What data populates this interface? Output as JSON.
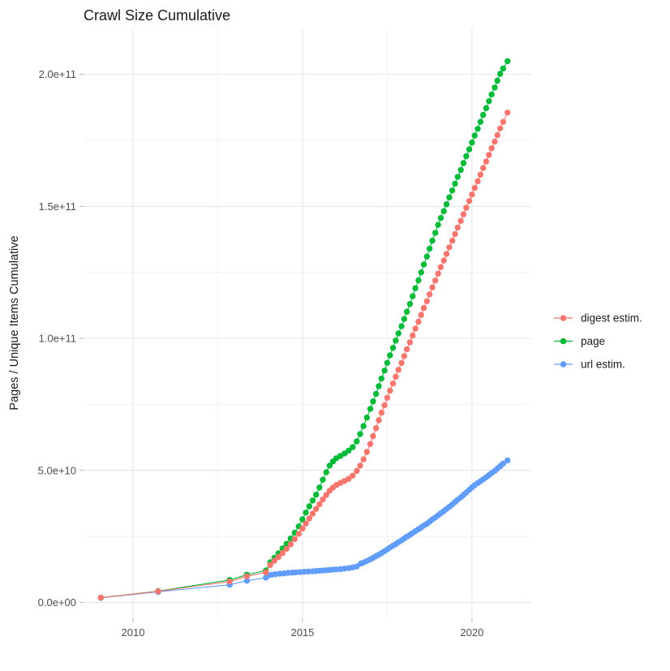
{
  "title": "Crawl Size Cumulative",
  "y_axis": {
    "label": "Pages / Unique Items Cumulative",
    "ticks": [
      {
        "label": "0.0e+00",
        "value": 0
      },
      {
        "label": "5.0e+10",
        "value": 50
      },
      {
        "label": "1.0e+11",
        "value": 100
      },
      {
        "label": "1.5e+11",
        "value": 150
      },
      {
        "label": "2.0e+11",
        "value": 200
      }
    ],
    "minor_ticks": [
      25,
      75,
      125,
      175
    ]
  },
  "x_axis": {
    "ticks": [
      {
        "label": "2010",
        "value": 2010
      },
      {
        "label": "2015",
        "value": 2015
      },
      {
        "label": "2020",
        "value": 2020
      }
    ],
    "minor_ticks": [
      2012.5,
      2017.5
    ]
  },
  "chart_data": {
    "type": "scatter",
    "note": "values stored in billions of pages/items (1e9); y tick labels shown in scientific notation",
    "xlim": [
      2008.54,
      2021.75
    ],
    "ylim": [
      -6,
      217.4
    ],
    "grid": true,
    "legend_position": "right",
    "marker": "point-with-line",
    "series": [
      {
        "name": "digest estim.",
        "color": "#F8766D",
        "points": [
          [
            2009.05,
            1.8
          ],
          [
            2010.74,
            4.2
          ],
          [
            2012.85,
            7.9
          ],
          [
            2013.36,
            9.9
          ],
          [
            2013.92,
            11.4
          ],
          [
            2014.05,
            14.2
          ],
          [
            2014.17,
            15.8
          ],
          [
            2014.29,
            17.2
          ],
          [
            2014.41,
            18.7
          ],
          [
            2014.53,
            20.3
          ],
          [
            2014.65,
            22.0
          ],
          [
            2014.77,
            24.0
          ],
          [
            2014.89,
            26.0
          ],
          [
            2015.0,
            28.0
          ],
          [
            2015.1,
            29.9
          ],
          [
            2015.2,
            31.8
          ],
          [
            2015.3,
            33.6
          ],
          [
            2015.4,
            35.4
          ],
          [
            2015.5,
            37.2
          ],
          [
            2015.6,
            39.0
          ],
          [
            2015.7,
            40.7
          ],
          [
            2015.8,
            42.3
          ],
          [
            2015.9,
            43.5
          ],
          [
            2016.0,
            44.5
          ],
          [
            2016.12,
            45.3
          ],
          [
            2016.24,
            46.0
          ],
          [
            2016.36,
            46.8
          ],
          [
            2016.48,
            48.0
          ],
          [
            2016.6,
            49.8
          ],
          [
            2016.7,
            51.8
          ],
          [
            2016.8,
            54.2
          ],
          [
            2016.9,
            57.0
          ],
          [
            2017.0,
            60.0
          ],
          [
            2017.08,
            63.0
          ],
          [
            2017.17,
            66.0
          ],
          [
            2017.25,
            69.0
          ],
          [
            2017.33,
            71.9
          ],
          [
            2017.42,
            74.7
          ],
          [
            2017.5,
            77.5
          ],
          [
            2017.58,
            80.2
          ],
          [
            2017.67,
            82.9
          ],
          [
            2017.75,
            85.5
          ],
          [
            2017.83,
            88.1
          ],
          [
            2017.92,
            90.7
          ],
          [
            2018.0,
            93.3
          ],
          [
            2018.08,
            95.9
          ],
          [
            2018.17,
            98.5
          ],
          [
            2018.25,
            101.1
          ],
          [
            2018.33,
            103.7
          ],
          [
            2018.42,
            106.3
          ],
          [
            2018.5,
            108.9
          ],
          [
            2018.58,
            111.5
          ],
          [
            2018.67,
            114.1
          ],
          [
            2018.75,
            116.7
          ],
          [
            2018.83,
            119.3
          ],
          [
            2018.92,
            121.9
          ],
          [
            2019.0,
            124.5
          ],
          [
            2019.08,
            127.0
          ],
          [
            2019.17,
            129.5
          ],
          [
            2019.25,
            132.0
          ],
          [
            2019.33,
            134.5
          ],
          [
            2019.42,
            137.0
          ],
          [
            2019.5,
            139.5
          ],
          [
            2019.58,
            142.0
          ],
          [
            2019.67,
            144.5
          ],
          [
            2019.75,
            147.0
          ],
          [
            2019.83,
            149.5
          ],
          [
            2019.92,
            152.0
          ],
          [
            2020.0,
            154.5
          ],
          [
            2020.08,
            157.0
          ],
          [
            2020.17,
            159.5
          ],
          [
            2020.25,
            162.0
          ],
          [
            2020.33,
            164.5
          ],
          [
            2020.42,
            167.0
          ],
          [
            2020.5,
            169.5
          ],
          [
            2020.58,
            172.0
          ],
          [
            2020.67,
            174.5
          ],
          [
            2020.75,
            177.0
          ],
          [
            2020.83,
            179.5
          ],
          [
            2020.92,
            182.0
          ],
          [
            2021.05,
            185.5
          ]
        ]
      },
      {
        "name": "page",
        "color": "#00BA38",
        "points": [
          [
            2009.05,
            1.8
          ],
          [
            2010.74,
            4.3
          ],
          [
            2012.85,
            8.5
          ],
          [
            2013.36,
            10.5
          ],
          [
            2013.92,
            12.1
          ],
          [
            2014.05,
            15.2
          ],
          [
            2014.17,
            16.9
          ],
          [
            2014.29,
            18.6
          ],
          [
            2014.41,
            20.5
          ],
          [
            2014.53,
            22.2
          ],
          [
            2014.65,
            24.2
          ],
          [
            2014.77,
            26.4
          ],
          [
            2014.89,
            28.8
          ],
          [
            2015.0,
            31.5
          ],
          [
            2015.1,
            34.0
          ],
          [
            2015.2,
            36.4
          ],
          [
            2015.3,
            38.6
          ],
          [
            2015.4,
            40.8
          ],
          [
            2015.5,
            43.5
          ],
          [
            2015.6,
            46.5
          ],
          [
            2015.7,
            49.3
          ],
          [
            2015.8,
            51.8
          ],
          [
            2015.9,
            53.4
          ],
          [
            2016.0,
            54.6
          ],
          [
            2016.12,
            55.5
          ],
          [
            2016.24,
            56.4
          ],
          [
            2016.36,
            57.5
          ],
          [
            2016.48,
            58.8
          ],
          [
            2016.6,
            61.0
          ],
          [
            2016.7,
            63.8
          ],
          [
            2016.8,
            66.8
          ],
          [
            2016.9,
            70.0
          ],
          [
            2017.0,
            73.3
          ],
          [
            2017.08,
            76.1
          ],
          [
            2017.17,
            79.0
          ],
          [
            2017.25,
            81.9
          ],
          [
            2017.33,
            84.8
          ],
          [
            2017.42,
            87.8
          ],
          [
            2017.5,
            90.7
          ],
          [
            2017.58,
            93.6
          ],
          [
            2017.67,
            96.4
          ],
          [
            2017.75,
            99.2
          ],
          [
            2017.83,
            101.9
          ],
          [
            2017.92,
            104.6
          ],
          [
            2018.0,
            107.3
          ],
          [
            2018.08,
            110.1
          ],
          [
            2018.17,
            113.0
          ],
          [
            2018.25,
            116.0
          ],
          [
            2018.33,
            119.0
          ],
          [
            2018.42,
            122.0
          ],
          [
            2018.5,
            125.0
          ],
          [
            2018.58,
            128.0
          ],
          [
            2018.67,
            131.0
          ],
          [
            2018.75,
            134.0
          ],
          [
            2018.83,
            137.0
          ],
          [
            2018.92,
            140.0
          ],
          [
            2019.0,
            143.0
          ],
          [
            2019.08,
            145.6
          ],
          [
            2019.17,
            148.2
          ],
          [
            2019.25,
            150.8
          ],
          [
            2019.33,
            153.4
          ],
          [
            2019.42,
            156.0
          ],
          [
            2019.5,
            158.6
          ],
          [
            2019.58,
            161.2
          ],
          [
            2019.67,
            163.8
          ],
          [
            2019.75,
            166.4
          ],
          [
            2019.83,
            169.0
          ],
          [
            2019.92,
            171.6
          ],
          [
            2020.0,
            174.2
          ],
          [
            2020.08,
            176.8
          ],
          [
            2020.17,
            179.4
          ],
          [
            2020.25,
            182.0
          ],
          [
            2020.33,
            184.6
          ],
          [
            2020.42,
            187.2
          ],
          [
            2020.5,
            189.8
          ],
          [
            2020.58,
            192.4
          ],
          [
            2020.67,
            195.0
          ],
          [
            2020.75,
            197.6
          ],
          [
            2020.83,
            200.2
          ],
          [
            2020.92,
            202.2
          ],
          [
            2021.05,
            205.0
          ]
        ]
      },
      {
        "name": "url estim.",
        "color": "#619CFF",
        "points": [
          [
            2009.05,
            1.7
          ],
          [
            2010.74,
            4.0
          ],
          [
            2012.85,
            6.7
          ],
          [
            2013.36,
            8.2
          ],
          [
            2013.92,
            9.4
          ],
          [
            2014.0,
            10.3
          ],
          [
            2014.1,
            10.5
          ],
          [
            2014.2,
            10.7
          ],
          [
            2014.33,
            10.9
          ],
          [
            2014.45,
            11.0
          ],
          [
            2014.57,
            11.2
          ],
          [
            2014.7,
            11.3
          ],
          [
            2014.8,
            11.4
          ],
          [
            2014.93,
            11.5
          ],
          [
            2015.05,
            11.6
          ],
          [
            2015.17,
            11.7
          ],
          [
            2015.3,
            11.8
          ],
          [
            2015.4,
            11.9
          ],
          [
            2015.5,
            12.0
          ],
          [
            2015.6,
            12.1
          ],
          [
            2015.7,
            12.2
          ],
          [
            2015.8,
            12.3
          ],
          [
            2015.9,
            12.4
          ],
          [
            2016.0,
            12.5
          ],
          [
            2016.12,
            12.6
          ],
          [
            2016.24,
            12.8
          ],
          [
            2016.36,
            13.0
          ],
          [
            2016.48,
            13.3
          ],
          [
            2016.6,
            13.6
          ],
          [
            2016.72,
            14.7
          ],
          [
            2016.8,
            15.1
          ],
          [
            2016.9,
            15.7
          ],
          [
            2017.0,
            16.3
          ],
          [
            2017.08,
            16.9
          ],
          [
            2017.17,
            17.5
          ],
          [
            2017.25,
            18.1
          ],
          [
            2017.33,
            18.7
          ],
          [
            2017.42,
            19.4
          ],
          [
            2017.5,
            20.1
          ],
          [
            2017.58,
            20.8
          ],
          [
            2017.67,
            21.5
          ],
          [
            2017.75,
            22.1
          ],
          [
            2017.83,
            22.8
          ],
          [
            2017.92,
            23.5
          ],
          [
            2018.0,
            24.2
          ],
          [
            2018.08,
            24.9
          ],
          [
            2018.17,
            25.6
          ],
          [
            2018.25,
            26.3
          ],
          [
            2018.33,
            27.0
          ],
          [
            2018.42,
            27.7
          ],
          [
            2018.5,
            28.4
          ],
          [
            2018.58,
            29.1
          ],
          [
            2018.67,
            29.8
          ],
          [
            2018.75,
            30.6
          ],
          [
            2018.83,
            31.4
          ],
          [
            2018.92,
            32.2
          ],
          [
            2019.0,
            33.0
          ],
          [
            2019.08,
            33.8
          ],
          [
            2019.17,
            34.6
          ],
          [
            2019.25,
            35.4
          ],
          [
            2019.33,
            36.2
          ],
          [
            2019.42,
            37.1
          ],
          [
            2019.5,
            38.0
          ],
          [
            2019.58,
            38.9
          ],
          [
            2019.67,
            39.8
          ],
          [
            2019.75,
            40.7
          ],
          [
            2019.83,
            41.6
          ],
          [
            2019.92,
            42.6
          ],
          [
            2020.0,
            43.6
          ],
          [
            2020.08,
            44.4
          ],
          [
            2020.17,
            45.2
          ],
          [
            2020.25,
            45.9
          ],
          [
            2020.33,
            46.6
          ],
          [
            2020.42,
            47.4
          ],
          [
            2020.5,
            48.2
          ],
          [
            2020.58,
            49.0
          ],
          [
            2020.67,
            49.8
          ],
          [
            2020.75,
            50.7
          ],
          [
            2020.83,
            51.6
          ],
          [
            2020.92,
            52.6
          ],
          [
            2021.05,
            53.8
          ]
        ]
      }
    ]
  }
}
